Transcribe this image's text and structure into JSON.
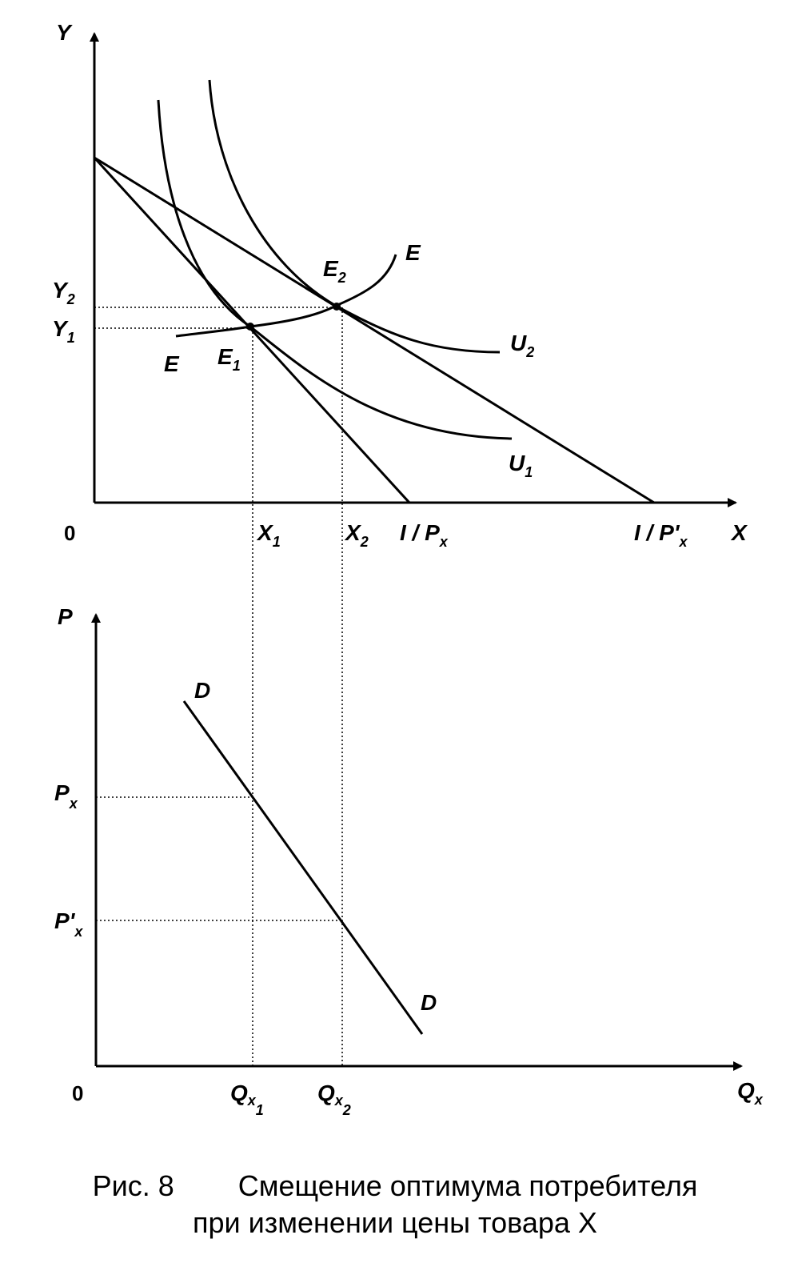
{
  "top_graph": {
    "y_axis": "Y",
    "x_axis": "X",
    "origin": "0",
    "y2": {
      "main": "Y",
      "sub": "2"
    },
    "y1": {
      "main": "Y",
      "sub": "1"
    },
    "x1": {
      "main": "X",
      "sub": "1"
    },
    "x2": {
      "main": "X",
      "sub": "2"
    },
    "budget1": {
      "main": "I / P",
      "sub": "x"
    },
    "budget2": {
      "main": "I / P'",
      "sub": "x"
    },
    "e1": {
      "main": "E",
      "sub": "1"
    },
    "e2": {
      "main": "E",
      "sub": "2"
    },
    "u1": {
      "main": "U",
      "sub": "1"
    },
    "u2": {
      "main": "U",
      "sub": "2"
    },
    "e_curve_start": "E",
    "e_curve_end": "E"
  },
  "bottom_graph": {
    "y_axis": "P",
    "x_axis": {
      "main": "Q",
      "sub": "x"
    },
    "origin": "0",
    "px": {
      "main": "P",
      "sub": "x"
    },
    "px_prime": {
      "main": "P'",
      "sub": "x"
    },
    "qx1": {
      "main": "Q",
      "sub": "x",
      "subsub": "1"
    },
    "qx2": {
      "main": "Q",
      "sub": "x",
      "subsub": "2"
    },
    "demand_top": "D",
    "demand_bottom": "D"
  },
  "caption": {
    "line1_fig": "Рис. 8",
    "line1_text": "Смещение оптимума потребителя",
    "line2": "при изменении цены товара X"
  }
}
